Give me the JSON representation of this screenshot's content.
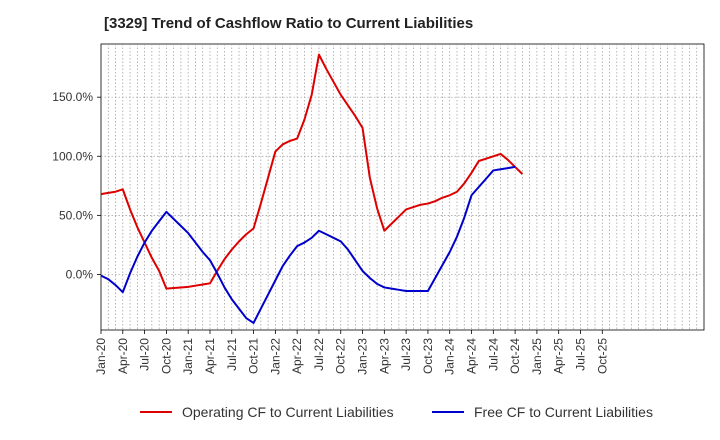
{
  "chart_data": {
    "type": "line",
    "title": "[3329]  Trend of Cashflow Ratio to Current Liabilities",
    "xlabel": "",
    "ylabel": "",
    "x": [
      "Jan-20",
      "Feb-20",
      "Mar-20",
      "Apr-20",
      "May-20",
      "Jun-20",
      "Jul-20",
      "Aug-20",
      "Sep-20",
      "Oct-20",
      "Nov-20",
      "Dec-20",
      "Jan-21",
      "Feb-21",
      "Mar-21",
      "Apr-21",
      "May-21",
      "Jun-21",
      "Jul-21",
      "Aug-21",
      "Sep-21",
      "Oct-21",
      "Nov-21",
      "Dec-21",
      "Jan-22",
      "Feb-22",
      "Mar-22",
      "Apr-22",
      "May-22",
      "Jun-22",
      "Jul-22",
      "Aug-22",
      "Sep-22",
      "Oct-22",
      "Nov-22",
      "Dec-22",
      "Jan-23",
      "Feb-23",
      "Mar-23",
      "Apr-23",
      "May-23",
      "Jun-23",
      "Jul-23",
      "Aug-23",
      "Sep-23",
      "Oct-23",
      "Nov-23",
      "Dec-23",
      "Jan-24",
      "Feb-24",
      "Mar-24",
      "Apr-24",
      "May-24",
      "Jun-24",
      "Jul-24",
      "Aug-24",
      "Sep-24",
      "Oct-24",
      "Nov-24",
      "Dec-24",
      "Jan-25",
      "Feb-25",
      "Mar-25",
      "Apr-25",
      "May-25",
      "Jun-25",
      "Jul-25",
      "Aug-25",
      "Sep-25",
      "Oct-25",
      "Nov-25",
      "Dec-25",
      "Jan-26",
      "Feb-26",
      "Mar-26",
      "Apr-26",
      "May-26",
      "Jun-26",
      "Jul-26",
      "Aug-26",
      "Sep-26",
      "Oct-26",
      "Nov-26",
      "Dec-26"
    ],
    "x_tick_labels": [
      "Jan-20",
      "Apr-20",
      "Jul-20",
      "Oct-20",
      "Jan-21",
      "Apr-21",
      "Jul-21",
      "Oct-21",
      "Jan-22",
      "Apr-22",
      "Jul-22",
      "Oct-22",
      "Jan-23",
      "Apr-23",
      "Jul-23",
      "Oct-23",
      "Jan-24",
      "Apr-24",
      "Jul-24",
      "Oct-24",
      "Jan-25",
      "Apr-25",
      "Jul-25",
      "Oct-25"
    ],
    "y_tick_values": [
      0,
      50,
      100,
      150
    ],
    "y_tick_labels": [
      "0.0%",
      "50.0%",
      "100.0%",
      "150.0%"
    ],
    "ylim": [
      -47,
      195
    ],
    "grid": true,
    "legend_position": "bottom",
    "series": [
      {
        "name": "Operating CF to Current Liabilities",
        "color": "#dd0000",
        "values": [
          68,
          69,
          70,
          72,
          55,
          40,
          27,
          14,
          3,
          -12,
          -11.5,
          -11,
          -10.5,
          -9.5,
          -8.5,
          -7.5,
          3,
          13,
          21,
          28,
          34,
          39,
          60,
          82,
          104,
          110,
          113,
          115,
          131,
          152,
          186,
          174,
          163,
          152,
          143,
          134,
          124,
          82,
          56,
          37,
          43,
          49,
          55,
          57,
          59,
          60,
          62,
          65,
          67,
          70,
          77,
          86,
          96,
          98,
          100,
          102,
          97,
          91,
          85,
          null,
          null,
          null,
          null,
          null,
          null,
          null,
          null,
          null,
          null,
          null,
          null,
          null,
          null,
          null,
          null,
          null,
          null,
          null,
          null,
          null,
          null,
          null,
          null,
          null
        ]
      },
      {
        "name": "Free CF to Current Liabilities",
        "color": "#0000cc",
        "values": [
          -1,
          -4,
          -9,
          -15,
          1,
          15,
          27,
          37,
          45,
          53,
          47,
          41,
          35,
          27,
          19,
          12,
          1,
          -11,
          -21,
          -29,
          -37,
          -41,
          -29,
          -17,
          -5,
          7,
          16,
          24,
          27,
          31,
          37,
          34,
          31,
          28,
          21,
          12,
          3,
          -3,
          -8,
          -11,
          -12,
          -13,
          -14,
          -14,
          -14,
          -14,
          -3,
          8,
          19,
          32,
          48,
          67,
          74,
          81,
          88,
          89,
          90,
          91,
          null,
          null,
          null,
          null,
          null,
          null,
          null,
          null,
          null,
          null,
          null,
          null,
          null,
          null,
          null,
          null,
          null,
          null,
          null,
          null,
          null,
          null,
          null,
          null,
          null,
          null
        ]
      }
    ]
  }
}
